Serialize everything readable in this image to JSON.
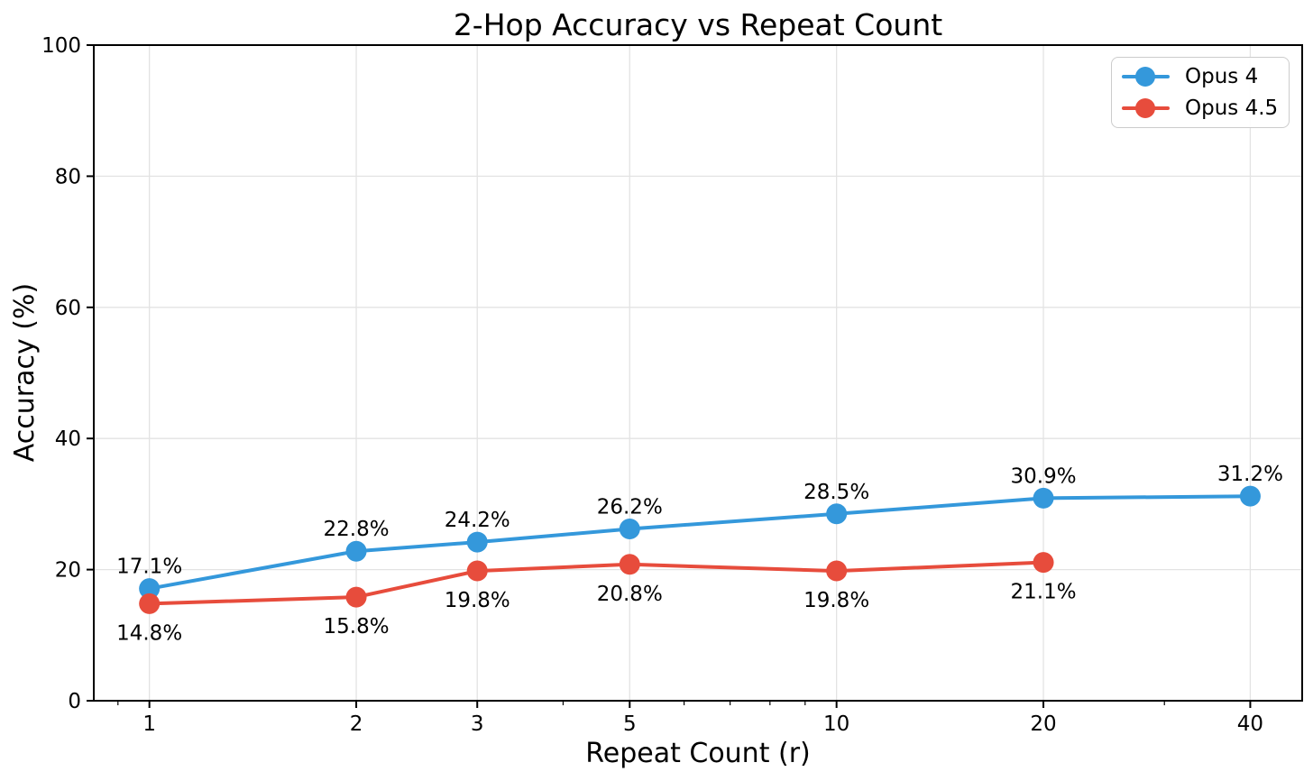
{
  "chart_data": {
    "type": "line",
    "title": "2-Hop Accuracy vs Repeat Count",
    "xlabel": "Repeat Count (r)",
    "ylabel": "Accuracy (%)",
    "x_scale": "log",
    "xlim": [
      0.83,
      47.6
    ],
    "ylim": [
      0,
      100
    ],
    "x_ticks": [
      1,
      2,
      3,
      5,
      10,
      20,
      40
    ],
    "x_minor_ticks": [
      0.9,
      4,
      6,
      7,
      8,
      9,
      30
    ],
    "y_ticks": [
      0,
      20,
      40,
      60,
      80,
      100
    ],
    "grid": true,
    "legend_position": "upper right",
    "series": [
      {
        "name": "Opus 4",
        "color": "#3498db",
        "x": [
          1,
          2,
          3,
          5,
          10,
          20,
          40
        ],
        "y": [
          17.1,
          22.8,
          24.2,
          26.2,
          28.5,
          30.9,
          31.2
        ],
        "labels": [
          "17.1%",
          "22.8%",
          "24.2%",
          "26.2%",
          "28.5%",
          "30.9%",
          "31.2%"
        ],
        "label_position": "above"
      },
      {
        "name": "Opus 4.5",
        "color": "#e74c3c",
        "x": [
          1,
          2,
          3,
          5,
          10,
          20
        ],
        "y": [
          14.8,
          15.8,
          19.8,
          20.8,
          19.8,
          21.1
        ],
        "labels": [
          "14.8%",
          "15.8%",
          "19.8%",
          "20.8%",
          "19.8%",
          "21.1%"
        ],
        "label_position": "below"
      }
    ]
  },
  "colors": {
    "background": "#ffffff",
    "grid": "#e3e3e3",
    "spine": "#000000",
    "tick_text": "#000000",
    "point_label_text": "#000000"
  }
}
